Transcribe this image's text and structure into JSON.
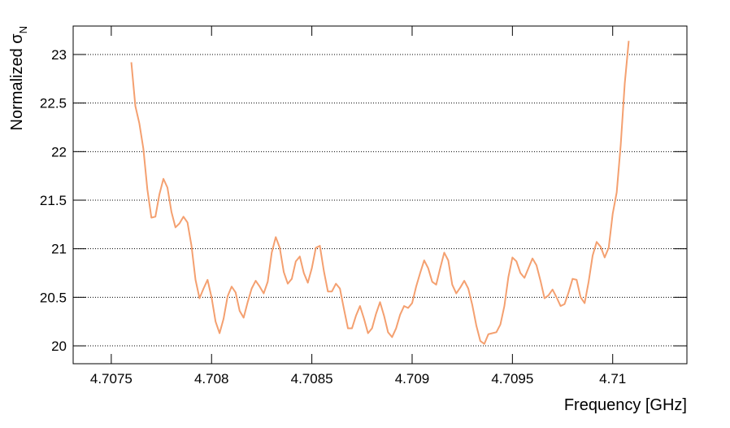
{
  "chart_data": {
    "type": "line",
    "xlabel": "Frequency [GHz]",
    "ylabel": {
      "text": "Normalized σ",
      "subscript": "N"
    },
    "xlim": [
      4.70731,
      4.71037
    ],
    "ylim": [
      19.816,
      23.293
    ],
    "xticks": [
      4.7075,
      4.708,
      4.7085,
      4.709,
      4.7095,
      4.71
    ],
    "yticks": [
      20,
      20.5,
      21,
      21.5,
      22,
      22.5,
      23
    ],
    "grid": "y",
    "x": [
      4.7076,
      4.70762,
      4.70764,
      4.70766,
      4.70768,
      4.7077,
      4.70772,
      4.70774,
      4.70776,
      4.70778,
      4.7078,
      4.70782,
      4.70784,
      4.70786,
      4.70788,
      4.7079,
      4.70792,
      4.70794,
      4.70796,
      4.70798,
      4.708,
      4.70802,
      4.70804,
      4.70806,
      4.70808,
      4.7081,
      4.70812,
      4.70814,
      4.70816,
      4.70818,
      4.7082,
      4.70822,
      4.70824,
      4.70826,
      4.70828,
      4.7083,
      4.70832,
      4.70834,
      4.70836,
      4.70838,
      4.7084,
      4.70842,
      4.70844,
      4.70846,
      4.70848,
      4.7085,
      4.70852,
      4.70854,
      4.70856,
      4.70858,
      4.7086,
      4.70862,
      4.70864,
      4.70866,
      4.70868,
      4.7087,
      4.70872,
      4.70874,
      4.70876,
      4.70878,
      4.7088,
      4.70882,
      4.70884,
      4.70886,
      4.70888,
      4.7089,
      4.70892,
      4.70894,
      4.70896,
      4.70898,
      4.709,
      4.70902,
      4.70904,
      4.70906,
      4.70908,
      4.7091,
      4.70912,
      4.70914,
      4.70916,
      4.70918,
      4.7092,
      4.70922,
      4.70924,
      4.70926,
      4.70928,
      4.7093,
      4.70932,
      4.70934,
      4.70936,
      4.70938,
      4.7094,
      4.70942,
      4.70944,
      4.70946,
      4.70948,
      4.7095,
      4.70952,
      4.70954,
      4.70956,
      4.70958,
      4.7096,
      4.70962,
      4.70964,
      4.70966,
      4.70968,
      4.7097,
      4.70972,
      4.70974,
      4.70976,
      4.70978,
      4.7098,
      4.70982,
      4.70984,
      4.70986,
      4.70988,
      4.7099,
      4.70992,
      4.70994,
      4.70996,
      4.70998,
      4.71,
      4.71002,
      4.71004,
      4.71006,
      4.71008
    ],
    "series": [
      {
        "color": "#f4a070",
        "values": [
          22.92,
          22.47,
          22.29,
          22.03,
          21.61,
          21.32,
          21.33,
          21.56,
          21.72,
          21.63,
          21.38,
          21.22,
          21.26,
          21.33,
          21.27,
          21.03,
          20.68,
          20.49,
          20.59,
          20.68,
          20.5,
          20.25,
          20.13,
          20.28,
          20.51,
          20.61,
          20.55,
          20.36,
          20.29,
          20.45,
          20.59,
          20.67,
          20.61,
          20.54,
          20.66,
          20.96,
          21.12,
          21.01,
          20.76,
          20.64,
          20.69,
          20.87,
          20.92,
          20.75,
          20.65,
          20.8,
          21.01,
          21.03,
          20.77,
          20.56,
          20.56,
          20.64,
          20.59,
          20.38,
          20.18,
          20.18,
          20.31,
          20.41,
          20.28,
          20.13,
          20.18,
          20.33,
          20.45,
          20.31,
          20.14,
          20.09,
          20.18,
          20.32,
          20.41,
          20.39,
          20.44,
          20.61,
          20.75,
          20.88,
          20.8,
          20.66,
          20.63,
          20.8,
          20.96,
          20.88,
          20.63,
          20.54,
          20.6,
          20.67,
          20.59,
          20.42,
          20.21,
          20.05,
          20.02,
          20.12,
          20.13,
          20.14,
          20.22,
          20.41,
          20.71,
          20.91,
          20.87,
          20.75,
          20.7,
          20.8,
          20.9,
          20.83,
          20.67,
          20.49,
          20.52,
          20.58,
          20.5,
          20.41,
          20.43,
          20.55,
          20.69,
          20.68,
          20.5,
          20.44,
          20.66,
          20.93,
          21.07,
          21.02,
          20.91,
          21.01,
          21.36,
          21.58,
          22.07,
          22.7,
          23.14
        ]
      }
    ]
  }
}
